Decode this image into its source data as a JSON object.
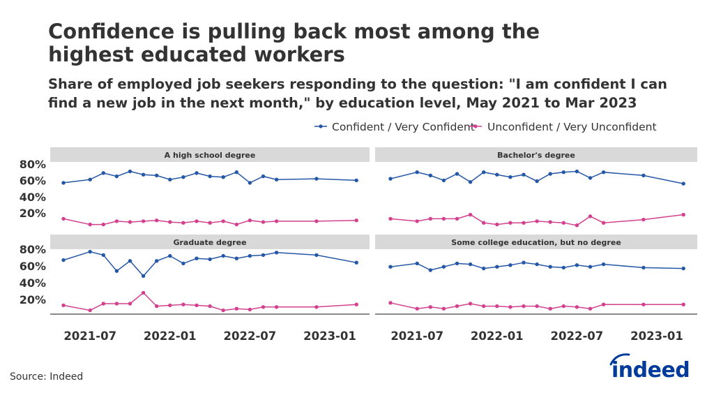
{
  "title_line1": "Confidence is pulling back most among the",
  "title_line2": "highest educated workers",
  "subtitle_line1": "Share of employed job seekers responding to the question: \"I am confident I can",
  "subtitle_line2": "find a new job in the next month,\" by education level, May 2021 to Mar 2023",
  "source": "Source: Indeed",
  "logo_text": "indeed",
  "colors": {
    "confident": "#2557a7",
    "unconfident": "#d3418e",
    "strip": "#d9d9d9",
    "logo": "#003a9b"
  },
  "chart_data": {
    "type": "line",
    "facets": "2x2",
    "legend_position": "top-right",
    "grid": false,
    "y_ticks": [
      "80%",
      "60%",
      "40%",
      "20%"
    ],
    "ylim": [
      0,
      85
    ],
    "x_ticks": [
      "2021-07",
      "2022-01",
      "2022-07",
      "2023-01"
    ],
    "x": [
      "2021-05",
      "2021-07",
      "2021-08",
      "2021-09",
      "2021-10",
      "2021-11",
      "2021-12",
      "2022-01",
      "2022-02",
      "2022-03",
      "2022-04",
      "2022-05",
      "2022-06",
      "2022-07",
      "2022-08",
      "2022-09",
      "2022-12",
      "2023-03"
    ],
    "legend": [
      "Confident / Very Confident",
      "Unconfident / Very Unconfident"
    ],
    "panels": [
      {
        "title": "A high school degree",
        "series": [
          {
            "name": "Confident / Very Confident",
            "values": [
              57,
              61,
              69,
              65,
              71,
              67,
              66,
              61,
              64,
              69,
              65,
              64,
              70,
              57,
              65,
              61,
              62,
              60
            ]
          },
          {
            "name": "Unconfident / Very Unconfident",
            "values": [
              13,
              6,
              6,
              10,
              9,
              10,
              11,
              9,
              8,
              10,
              8,
              10,
              6,
              11,
              9,
              10,
              10,
              11
            ]
          }
        ]
      },
      {
        "title": "Bachelor's degree",
        "series": [
          {
            "name": "Confident / Very Confident",
            "values": [
              62,
              70,
              66,
              60,
              68,
              58,
              70,
              67,
              64,
              67,
              59,
              68,
              70,
              71,
              63,
              70,
              66,
              56
            ]
          },
          {
            "name": "Unconfident / Very Unconfident",
            "values": [
              13,
              10,
              13,
              13,
              13,
              18,
              8,
              6,
              8,
              8,
              10,
              9,
              8,
              5,
              16,
              8,
              12,
              18
            ]
          }
        ]
      },
      {
        "title": "Graduate degree",
        "series": [
          {
            "name": "Confident / Very Confident",
            "values": [
              67,
              77,
              73,
              54,
              66,
              48,
              66,
              72,
              63,
              69,
              68,
              72,
              69,
              72,
              73,
              76,
              73,
              64
            ]
          },
          {
            "name": "Unconfident / Very Unconfident",
            "values": [
              13,
              7,
              15,
              15,
              15,
              28,
              12,
              13,
              14,
              13,
              12,
              7,
              9,
              8,
              11,
              11,
              11,
              14
            ]
          }
        ]
      },
      {
        "title": "Some college education, but no degree",
        "series": [
          {
            "name": "Confident / Very Confident",
            "values": [
              59,
              63,
              55,
              59,
              63,
              62,
              57,
              59,
              61,
              64,
              62,
              59,
              58,
              61,
              59,
              62,
              58,
              57
            ]
          },
          {
            "name": "Unconfident / Very Unconfident",
            "values": [
              16,
              9,
              11,
              9,
              12,
              15,
              12,
              12,
              11,
              12,
              12,
              9,
              12,
              11,
              9,
              14,
              14,
              14
            ]
          }
        ]
      }
    ]
  }
}
